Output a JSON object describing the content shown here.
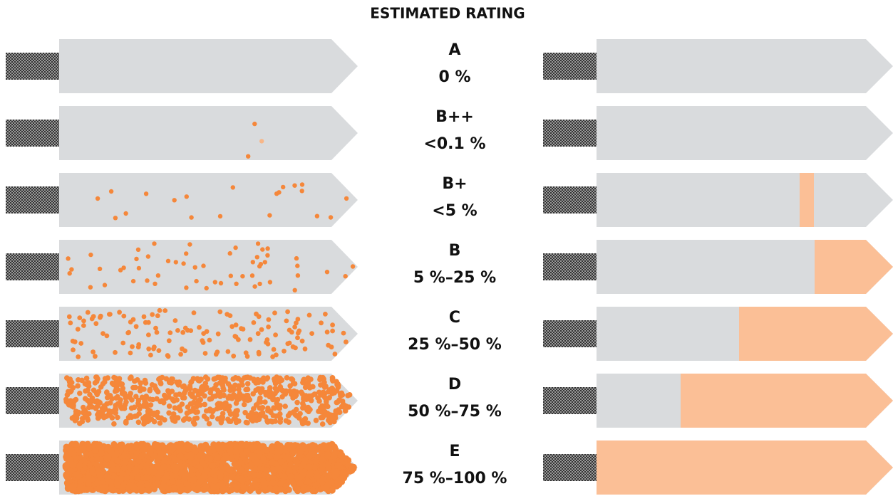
{
  "title": "ESTIMATED RATING",
  "rows": [
    {
      "grade": "A",
      "range": "0 %"
    },
    {
      "grade": "B++",
      "range": "<0.1 %"
    },
    {
      "grade": "B+",
      "range": "<5 %"
    },
    {
      "grade": "B",
      "range": "5 %–25 %"
    },
    {
      "grade": "C",
      "range": "25 %–50 %"
    },
    {
      "grade": "D",
      "range": "50 %–75 %"
    },
    {
      "grade": "E",
      "range": "75 %–100 %"
    }
  ]
}
